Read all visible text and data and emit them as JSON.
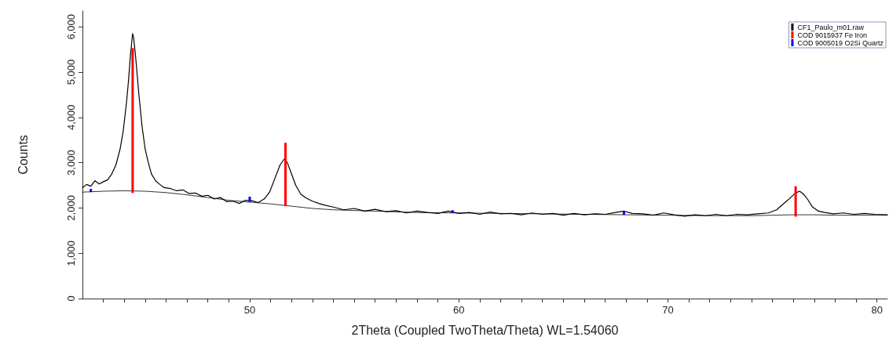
{
  "chart_data": {
    "type": "line",
    "xlabel": "2Theta (Coupled TwoTheta/Theta) WL=1.54060",
    "ylabel": "Counts",
    "xlim": [
      42,
      80.5
    ],
    "ylim": [
      0,
      6350
    ],
    "xticks": [
      {
        "value": 43,
        "label": null
      },
      {
        "value": 44,
        "label": null
      },
      {
        "value": 45,
        "label": null
      },
      {
        "value": 46,
        "label": null
      },
      {
        "value": 47,
        "label": null
      },
      {
        "value": 48,
        "label": null
      },
      {
        "value": 49,
        "label": null
      },
      50,
      {
        "value": 51,
        "label": null
      },
      {
        "value": 52,
        "label": null
      },
      {
        "value": 53,
        "label": null
      },
      {
        "value": 54,
        "label": null
      },
      {
        "value": 55,
        "label": null
      },
      {
        "value": 56,
        "label": null
      },
      {
        "value": 57,
        "label": null
      },
      {
        "value": 58,
        "label": null
      },
      {
        "value": 59,
        "label": null
      },
      60,
      {
        "value": 61,
        "label": null
      },
      {
        "value": 62,
        "label": null
      },
      {
        "value": 63,
        "label": null
      },
      {
        "value": 64,
        "label": null
      },
      {
        "value": 65,
        "label": null
      },
      {
        "value": 66,
        "label": null
      },
      {
        "value": 67,
        "label": null
      },
      {
        "value": 68,
        "label": null
      },
      {
        "value": 69,
        "label": null
      },
      70,
      {
        "value": 71,
        "label": null
      },
      {
        "value": 72,
        "label": null
      },
      {
        "value": 73,
        "label": null
      },
      {
        "value": 74,
        "label": null
      },
      {
        "value": 75,
        "label": null
      },
      {
        "value": 76,
        "label": null
      },
      {
        "value": 77,
        "label": null
      },
      {
        "value": 78,
        "label": null
      },
      {
        "value": 79,
        "label": null
      },
      80
    ],
    "yticks": [
      0,
      {
        "value": 1000,
        "label": "1,000"
      },
      {
        "value": 2000,
        "label": "2,000"
      },
      {
        "value": 3000,
        "label": "3,000"
      },
      {
        "value": 4000,
        "label": "4,000"
      },
      {
        "value": 5000,
        "label": "5,000"
      },
      {
        "value": 6000,
        "label": "6,000"
      }
    ],
    "grid": false,
    "legend": "top right",
    "marker": "none",
    "series": [
      {
        "name": "CF1_Paulo_m01.raw",
        "color": "#000000",
        "x": [
          42.0,
          42.2,
          42.4,
          42.6,
          42.8,
          43.0,
          43.2,
          43.4,
          43.6,
          43.8,
          43.95,
          44.1,
          44.2,
          44.3,
          44.4,
          44.45,
          44.55,
          44.7,
          44.85,
          45.0,
          45.15,
          45.3,
          45.5,
          45.7,
          45.9,
          46.2,
          46.5,
          46.8,
          47.1,
          47.4,
          47.7,
          48.0,
          48.3,
          48.6,
          48.9,
          49.2,
          49.5,
          49.8,
          50.1,
          50.4,
          50.7,
          50.95,
          51.2,
          51.45,
          51.65,
          51.8,
          52.0,
          52.2,
          52.45,
          52.7,
          53.0,
          53.3,
          53.6,
          54.0,
          54.5,
          55.0,
          55.5,
          56.0,
          56.5,
          57.0,
          57.5,
          58.0,
          58.5,
          59.0,
          59.5,
          60.0,
          60.5,
          61.0,
          61.5,
          62.0,
          62.5,
          63.0,
          63.5,
          64.0,
          64.5,
          65.0,
          65.5,
          66.0,
          66.5,
          67.0,
          67.5,
          67.9,
          68.3,
          68.8,
          69.3,
          69.8,
          70.3,
          70.8,
          71.3,
          71.8,
          72.3,
          72.8,
          73.3,
          73.8,
          74.3,
          74.8,
          75.2,
          75.5,
          75.8,
          76.1,
          76.3,
          76.5,
          76.7,
          76.9,
          77.2,
          77.5,
          77.9,
          78.4,
          78.9,
          79.4,
          79.9,
          80.5
        ],
        "values": [
          2450,
          2520,
          2480,
          2600,
          2530,
          2580,
          2620,
          2750,
          2950,
          3300,
          3700,
          4300,
          4800,
          5400,
          5850,
          5750,
          5300,
          4500,
          3800,
          3300,
          3000,
          2750,
          2600,
          2520,
          2450,
          2430,
          2380,
          2400,
          2320,
          2330,
          2260,
          2280,
          2200,
          2230,
          2140,
          2150,
          2100,
          2170,
          2160,
          2120,
          2200,
          2350,
          2650,
          2950,
          3080,
          3000,
          2750,
          2500,
          2300,
          2220,
          2150,
          2100,
          2060,
          2020,
          1960,
          1990,
          1930,
          1970,
          1920,
          1940,
          1890,
          1930,
          1900,
          1880,
          1930,
          1880,
          1900,
          1860,
          1910,
          1870,
          1880,
          1850,
          1890,
          1860,
          1880,
          1840,
          1880,
          1850,
          1870,
          1860,
          1900,
          1930,
          1880,
          1870,
          1840,
          1890,
          1850,
          1820,
          1850,
          1830,
          1860,
          1830,
          1860,
          1850,
          1870,
          1890,
          1960,
          2080,
          2200,
          2330,
          2370,
          2300,
          2180,
          2030,
          1930,
          1900,
          1870,
          1890,
          1860,
          1880,
          1860,
          1850
        ]
      },
      {
        "color": "#000000",
        "x": [
          42,
          43,
          44,
          45,
          46,
          47,
          48,
          49,
          50,
          51,
          52,
          53,
          54,
          56,
          58,
          60,
          62,
          64,
          66,
          68,
          70,
          72,
          74,
          75,
          76,
          77,
          78,
          80.5
        ],
        "values": [
          2350,
          2370,
          2380,
          2370,
          2340,
          2290,
          2230,
          2170,
          2130,
          2090,
          2040,
          1990,
          1960,
          1930,
          1900,
          1890,
          1880,
          1870,
          1860,
          1850,
          1840,
          1830,
          1830,
          1840,
          1850,
          1850,
          1840,
          1840
        ]
      },
      {
        "name": "COD 9015937 Fe Iron",
        "type": "bar",
        "color": "#ff0000",
        "x": [
          44.4,
          51.71,
          76.11
        ],
        "base": [
          2330,
          2040,
          1810
        ],
        "values": [
          3200,
          1400,
          670
        ]
      },
      {
        "name": "COD 9005019 O2Si Quartz",
        "type": "bar",
        "color": "#0000ff",
        "x": [
          42.4,
          50.0,
          59.7,
          67.9
        ],
        "base": [
          2350,
          2130,
          1890,
          1850
        ],
        "values": [
          70,
          120,
          60,
          80
        ]
      }
    ]
  }
}
